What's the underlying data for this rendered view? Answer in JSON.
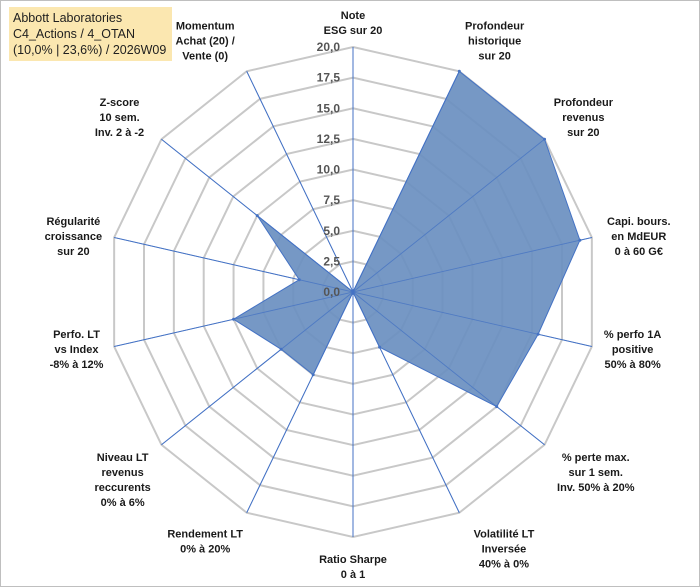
{
  "title": {
    "line1": "Abbott Laboratories",
    "line2": "C4_Actions / 4_OTAN",
    "line3": "(10,0% | 23,6%) / 2026W09"
  },
  "chart_data": {
    "type": "radar",
    "title": "Abbott Laboratories C4_Actions / 4_OTAN (10,0% | 23,6%) / 2026W09",
    "range": [
      0,
      20
    ],
    "ticks": [
      0,
      2.5,
      5,
      7.5,
      10,
      12.5,
      15,
      17.5,
      20
    ],
    "tick_labels": [
      "0,0",
      "2,5",
      "5,0",
      "7,5",
      "10,0",
      "12,5",
      "15,0",
      "17,5",
      "20,0"
    ],
    "axes": [
      {
        "label": [
          "Note",
          "ESG sur 20"
        ],
        "value": 0
      },
      {
        "label": [
          "Profondeur",
          "historique",
          "sur 20"
        ],
        "value": 20
      },
      {
        "label": [
          "Profondeur",
          "revenus",
          "sur 20"
        ],
        "value": 20
      },
      {
        "label": [
          "Capi. bours.",
          "en MdEUR",
          "0 à 60 G€"
        ],
        "value": 19
      },
      {
        "label": [
          "% perfo 1A",
          "positive",
          "50% à 80%"
        ],
        "value": 15.5
      },
      {
        "label": [
          "% perte max.",
          "sur 1 sem.",
          "Inv. 50% à 20%"
        ],
        "value": 15
      },
      {
        "label": [
          "Volatilité LT",
          "Inversée",
          "40% à 0%"
        ],
        "value": 5
      },
      {
        "label": [
          "Ratio Sharpe",
          "0 à 1"
        ],
        "value": 0
      },
      {
        "label": [
          "Rendement LT",
          "0% à 20%"
        ],
        "value": 7.5
      },
      {
        "label": [
          "Niveau LT",
          "revenus",
          "reccurents",
          "0% à 6%"
        ],
        "value": 7.5
      },
      {
        "label": [
          "Perfo. LT",
          "vs Index",
          "-8% à 12%"
        ],
        "value": 10
      },
      {
        "label": [
          "Régularité",
          "croissance",
          "sur 20"
        ],
        "value": 4.5
      },
      {
        "label": [
          "Z-score",
          "10 sem.",
          "Inv. 2 à -2"
        ],
        "value": 10
      },
      {
        "label": [
          "Momentum",
          "Achat (20) /",
          "Vente (0)"
        ],
        "value": 0
      }
    ],
    "series": [
      {
        "name": "Abbott Laboratories",
        "fill": "#6a8fc0",
        "stroke": "#4472c4"
      }
    ],
    "grid_color": "#c8c8c8",
    "axis_color": "#4472c4"
  }
}
